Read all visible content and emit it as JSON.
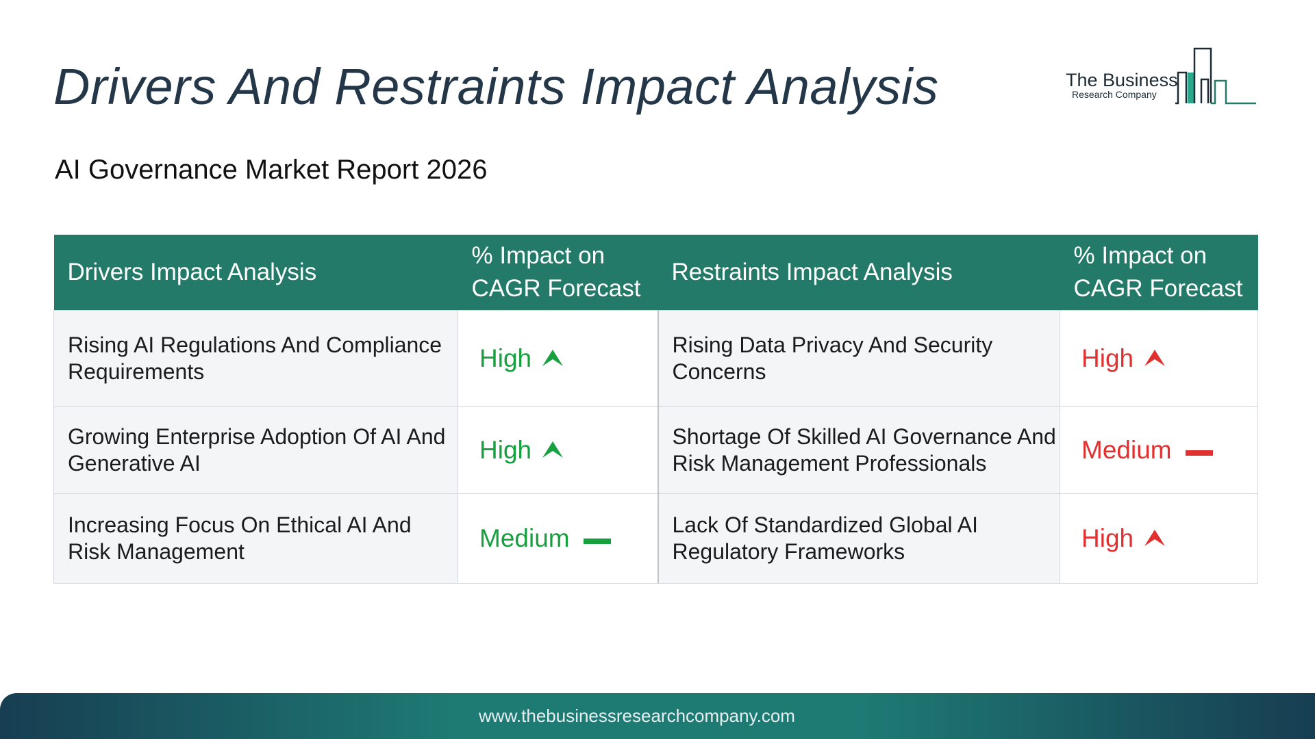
{
  "header": {
    "title": "Drivers And Restraints Impact Analysis",
    "subtitle": "AI Governance Market Report 2026",
    "logo_line1": "The Business",
    "logo_line2": "Research Company"
  },
  "table": {
    "headers": [
      "Drivers Impact Analysis",
      "% Impact on CAGR Forecast",
      "Restraints Impact Analysis",
      "% Impact on CAGR Forecast"
    ],
    "rows": [
      {
        "driver": "Rising AI Regulations And Compliance Requirements",
        "driver_impact": "High",
        "restraint": "Rising Data Privacy And Security Concerns",
        "restraint_impact": "High"
      },
      {
        "driver": "Growing Enterprise Adoption Of AI And Generative AI",
        "driver_impact": "High",
        "restraint": "Shortage Of Skilled AI Governance And Risk Management Professionals",
        "restraint_impact": "Medium"
      },
      {
        "driver": "Increasing Focus On Ethical AI And Risk Management",
        "driver_impact": "Medium",
        "restraint": "Lack Of Standardized Global AI Regulatory Frameworks",
        "restraint_impact": "High"
      }
    ]
  },
  "colors": {
    "header_bg": "#237a68",
    "driver_accent": "#17a03e",
    "restraint_accent": "#e03030"
  },
  "icons": {
    "high": "arrow-up-icon",
    "medium": "dash-icon"
  },
  "footer": {
    "url": "www.thebusinessresearchcompany.com"
  }
}
